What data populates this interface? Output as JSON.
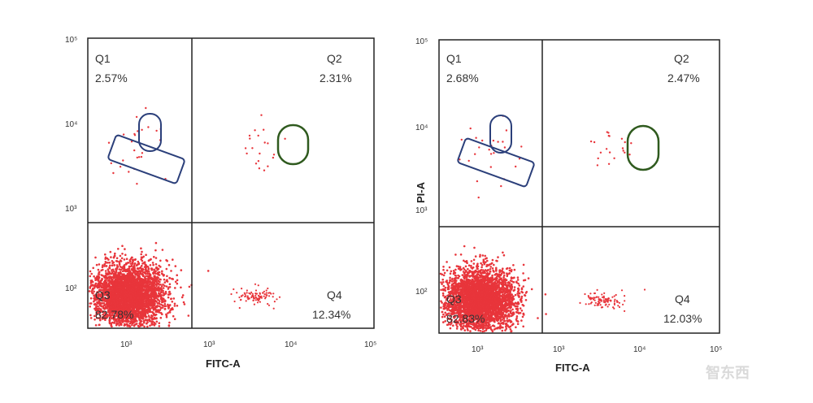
{
  "chart_data": [
    {
      "type": "scatter",
      "xlabel": "FITC-A",
      "ylabel": "",
      "x_scale": "log",
      "y_scale": "log",
      "xlim": [
        300,
        100000
      ],
      "ylim": [
        300,
        100000
      ],
      "x_ticks": [
        "10³",
        "10³",
        "10⁴",
        "10⁵"
      ],
      "y_ticks": [
        "10⁵",
        "10⁴",
        "10³",
        "10²"
      ],
      "gate_x": 1950,
      "gate_y": 1800,
      "quadrants": [
        {
          "name": "Q1",
          "percent": "2.57%"
        },
        {
          "name": "Q2",
          "percent": "2.31%"
        },
        {
          "name": "Q3",
          "percent": "82.78%"
        },
        {
          "name": "Q4",
          "percent": "12.34%"
        }
      ],
      "point_color": "#e8353b",
      "gate_colors": {
        "q1_gates": "#2b3f7a",
        "q2_gate": "#2f5a1e"
      },
      "clusters": {
        "q3": {
          "x_center": 700,
          "y_center": 580,
          "count": 3600
        },
        "q4": {
          "x_center": 9000,
          "y_center": 570,
          "count": 90
        }
      }
    },
    {
      "type": "scatter",
      "xlabel": "FITC-A",
      "ylabel": "PI-A",
      "x_scale": "log",
      "y_scale": "log",
      "xlim": [
        300,
        100000
      ],
      "ylim": [
        300,
        100000
      ],
      "x_ticks": [
        "10³",
        "10³",
        "10⁴",
        "10⁵"
      ],
      "y_ticks": [
        "10⁵",
        "10⁴",
        "10³",
        "10²"
      ],
      "gate_x": 1950,
      "gate_y": 1800,
      "quadrants": [
        {
          "name": "Q1",
          "percent": "2.68%"
        },
        {
          "name": "Q2",
          "percent": "2.47%"
        },
        {
          "name": "Q3",
          "percent": "82.83%"
        },
        {
          "name": "Q4",
          "percent": "12.03%"
        }
      ],
      "point_color": "#e8353b",
      "gate_colors": {
        "q1_gates": "#2b3f7a",
        "q2_gate": "#2f5a1e"
      },
      "clusters": {
        "q3": {
          "x_center": 700,
          "y_center": 580,
          "count": 3600
        },
        "q4": {
          "x_center": 9000,
          "y_center": 570,
          "count": 90
        }
      }
    }
  ],
  "watermark": "智东西"
}
